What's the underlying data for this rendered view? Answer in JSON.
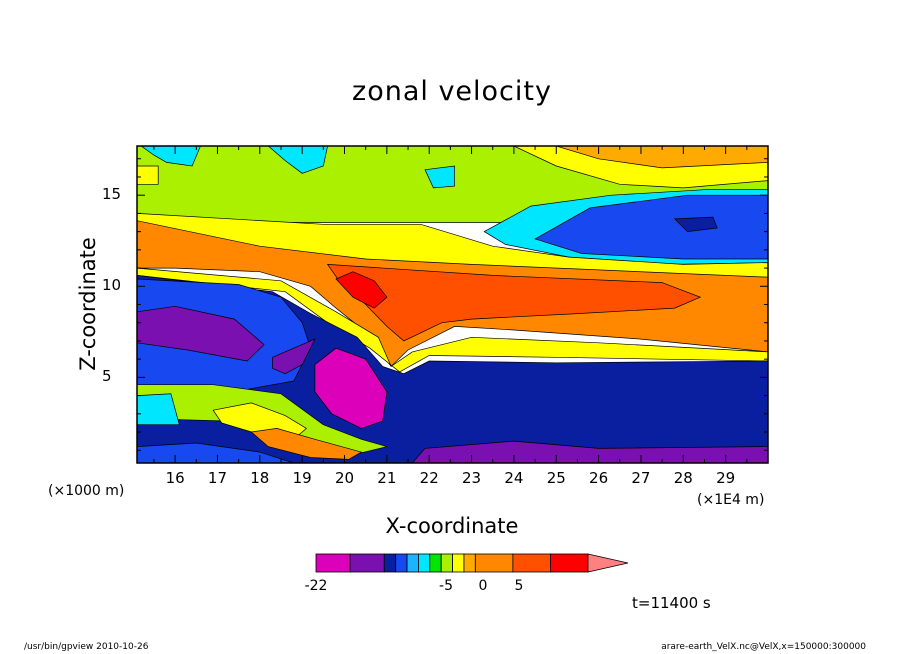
{
  "chart_data": {
    "type": "heatmap",
    "title": "zonal velocity",
    "xlabel": "X-coordinate",
    "ylabel": "Z-coordinate",
    "x_unit": "(×1E4 m)",
    "y_unit": "(×1000 m)",
    "xlim": [
      15.1,
      30.0
    ],
    "ylim": [
      0.3,
      17.7
    ],
    "x_ticks": [
      "16",
      "17",
      "18",
      "19",
      "20",
      "21",
      "22",
      "23",
      "24",
      "25",
      "26",
      "27",
      "28",
      "29"
    ],
    "y_ticks": [
      "5",
      "10",
      "15"
    ],
    "colorbar": {
      "levels": [
        -22,
        -17,
        -12,
        -7,
        -5,
        -3,
        -1,
        0,
        1,
        3,
        5,
        7,
        10,
        15
      ],
      "colors": [
        "#dd00bb",
        "#7a10b0",
        "#0a1ea0",
        "#1848f0",
        "#1ab4ff",
        "#00e6ff",
        "#00e600",
        "#aaf000",
        "#ffff00",
        "#ffaa00",
        "#ff8800",
        "#ff5000",
        "#ff0000",
        "#ff8080"
      ],
      "tick_labels": [
        "-22",
        "-5",
        "0",
        "5"
      ]
    },
    "regions": [
      {
        "name": "upper-green",
        "value": 0,
        "polygon": [
          [
            15.1,
            17.7
          ],
          [
            30,
            17.7
          ],
          [
            30,
            13.5
          ],
          [
            15.1,
            13.5
          ]
        ]
      },
      {
        "name": "upper-right-yellow",
        "value": 2,
        "polygon": [
          [
            24,
            17.7
          ],
          [
            30,
            17.7
          ],
          [
            30,
            15.8
          ],
          [
            28,
            15.4
          ],
          [
            26.5,
            15.6
          ],
          [
            25,
            16.6
          ]
        ]
      },
      {
        "name": "upper-right-orange",
        "value": 4,
        "polygon": [
          [
            25,
            17.7
          ],
          [
            30,
            17.7
          ],
          [
            30,
            16.8
          ],
          [
            27.5,
            16.5
          ],
          [
            26,
            17
          ]
        ]
      },
      {
        "name": "cyan-top-left",
        "value": -3,
        "polygon": [
          [
            15.2,
            17.7
          ],
          [
            16.6,
            17.7
          ],
          [
            16.4,
            16.6
          ],
          [
            15.8,
            16.8
          ],
          [
            15.5,
            17.2
          ]
        ]
      },
      {
        "name": "cyan-top-mid",
        "value": -3,
        "polygon": [
          [
            18.2,
            17.7
          ],
          [
            19.6,
            17.7
          ],
          [
            19.5,
            16.6
          ],
          [
            19,
            16.2
          ],
          [
            18.6,
            16.9
          ]
        ]
      },
      {
        "name": "cyan-top-small",
        "value": -3,
        "polygon": [
          [
            21.9,
            16.4
          ],
          [
            22.6,
            16.6
          ],
          [
            22.6,
            15.5
          ],
          [
            22.1,
            15.4
          ]
        ]
      },
      {
        "name": "yellow-left-blob",
        "value": 2,
        "polygon": [
          [
            15.1,
            16.6
          ],
          [
            15.6,
            16.6
          ],
          [
            15.6,
            15.6
          ],
          [
            15.1,
            15.6
          ]
        ]
      },
      {
        "name": "upper-right-cyan",
        "value": -3,
        "polygon": [
          [
            23.3,
            13.0
          ],
          [
            24.4,
            14.4
          ],
          [
            26.3,
            15.0
          ],
          [
            28.5,
            15.3
          ],
          [
            30,
            15.3
          ],
          [
            30,
            11.3
          ],
          [
            27.8,
            11.2
          ],
          [
            25.3,
            11.6
          ],
          [
            23.8,
            12.3
          ]
        ]
      },
      {
        "name": "upper-right-blue",
        "value": -6,
        "polygon": [
          [
            24.5,
            12.6
          ],
          [
            25.8,
            14.3
          ],
          [
            28.1,
            15.0
          ],
          [
            30,
            15.0
          ],
          [
            30,
            11.5
          ],
          [
            28,
            11.5
          ],
          [
            25.6,
            11.8
          ]
        ]
      },
      {
        "name": "upper-right-navy",
        "value": -9,
        "polygon": [
          [
            27.8,
            13.7
          ],
          [
            28.7,
            13.8
          ],
          [
            28.8,
            13.2
          ],
          [
            28.1,
            13.0
          ]
        ]
      },
      {
        "name": "upper-yellow-band",
        "value": 2,
        "polygon": [
          [
            15.1,
            14.0
          ],
          [
            19.5,
            13.4
          ],
          [
            21.8,
            13.4
          ],
          [
            23.5,
            12.2
          ],
          [
            25.3,
            11.6
          ],
          [
            28,
            11.2
          ],
          [
            30,
            11.3
          ],
          [
            30,
            10.5
          ],
          [
            25,
            10.6
          ],
          [
            21,
            10.8
          ],
          [
            17,
            11.2
          ],
          [
            15.1,
            11.3
          ]
        ]
      },
      {
        "name": "orange-jet",
        "value": 6,
        "polygon": [
          [
            15.1,
            13.6
          ],
          [
            18,
            12.2
          ],
          [
            20.5,
            11.5
          ],
          [
            23,
            11.2
          ],
          [
            26,
            10.9
          ],
          [
            30,
            10.5
          ],
          [
            30,
            6.4
          ],
          [
            27,
            7.1
          ],
          [
            24,
            7.6
          ],
          [
            22.6,
            7.8
          ],
          [
            21.5,
            6.5
          ],
          [
            21.1,
            5.6
          ],
          [
            20.5,
            7.5
          ],
          [
            19.8,
            8.8
          ],
          [
            19.2,
            10.0
          ],
          [
            18,
            10.8
          ],
          [
            16,
            11.0
          ],
          [
            15.1,
            11.0
          ]
        ]
      },
      {
        "name": "dark-orange-core",
        "value": 9,
        "polygon": [
          [
            19.6,
            11.2
          ],
          [
            23.5,
            10.6
          ],
          [
            27.5,
            10.2
          ],
          [
            28.4,
            9.4
          ],
          [
            27.8,
            8.8
          ],
          [
            25.5,
            8.5
          ],
          [
            23,
            8.2
          ],
          [
            22.3,
            8.0
          ],
          [
            21.4,
            7.0
          ],
          [
            21.0,
            7.8
          ],
          [
            20.5,
            9.0
          ],
          [
            19.9,
            10.2
          ]
        ]
      },
      {
        "name": "red-core",
        "value": 12,
        "polygon": [
          [
            19.8,
            10.4
          ],
          [
            20.2,
            10.8
          ],
          [
            20.7,
            10.3
          ],
          [
            21.0,
            9.4
          ],
          [
            20.7,
            8.8
          ],
          [
            20.2,
            9.4
          ]
        ]
      },
      {
        "name": "lower-yellow-band",
        "value": 2,
        "polygon": [
          [
            15.1,
            11.0
          ],
          [
            18.5,
            10.3
          ],
          [
            19.8,
            8.6
          ],
          [
            20.8,
            7.2
          ],
          [
            21.1,
            5.6
          ],
          [
            21.6,
            6.4
          ],
          [
            23,
            7.2
          ],
          [
            26,
            6.9
          ],
          [
            30,
            6.4
          ],
          [
            30,
            5.9
          ],
          [
            25,
            6.1
          ],
          [
            22.0,
            6.2
          ],
          [
            21.3,
            5.3
          ],
          [
            20.6,
            6.6
          ],
          [
            19.6,
            8.0
          ],
          [
            18.6,
            9.7
          ],
          [
            15.1,
            10.6
          ]
        ]
      },
      {
        "name": "lower-domain-navy",
        "value": -9,
        "polygon": [
          [
            15.1,
            10.6
          ],
          [
            18.3,
            9.7
          ],
          [
            19.2,
            8.5
          ],
          [
            20.3,
            7.2
          ],
          [
            20.9,
            5.6
          ],
          [
            21.4,
            5.2
          ],
          [
            22.0,
            5.9
          ],
          [
            25,
            5.8
          ],
          [
            30,
            5.9
          ],
          [
            30,
            0.3
          ],
          [
            15.1,
            0.3
          ]
        ]
      },
      {
        "name": "blue-lower-left",
        "value": -6,
        "polygon": [
          [
            15.1,
            10.4
          ],
          [
            17.5,
            10.1
          ],
          [
            18.5,
            9.4
          ],
          [
            19.0,
            8.0
          ],
          [
            19.2,
            6.6
          ],
          [
            18.8,
            4.8
          ],
          [
            17.6,
            4.3
          ],
          [
            16.0,
            4.2
          ],
          [
            15.1,
            4.0
          ]
        ]
      },
      {
        "name": "purple-left",
        "value": -13,
        "polygon": [
          [
            15.1,
            8.6
          ],
          [
            16.0,
            8.9
          ],
          [
            17.4,
            8.2
          ],
          [
            18.1,
            6.8
          ],
          [
            17.7,
            5.9
          ],
          [
            16.3,
            6.5
          ],
          [
            15.1,
            6.9
          ]
        ]
      },
      {
        "name": "purple-wedge",
        "value": -13,
        "polygon": [
          [
            18.3,
            6.1
          ],
          [
            18.8,
            6.6
          ],
          [
            19.3,
            7.1
          ],
          [
            19.0,
            5.7
          ],
          [
            18.6,
            5.2
          ],
          [
            18.3,
            5.5
          ]
        ]
      },
      {
        "name": "magenta-column",
        "value": -18,
        "polygon": [
          [
            19.3,
            5.7
          ],
          [
            19.8,
            6.6
          ],
          [
            20.5,
            6.0
          ],
          [
            21.0,
            4.2
          ],
          [
            20.9,
            2.6
          ],
          [
            20.4,
            2.2
          ],
          [
            19.7,
            3.0
          ],
          [
            19.3,
            4.2
          ]
        ]
      },
      {
        "name": "green-lower-left",
        "value": 0,
        "polygon": [
          [
            15.1,
            4.6
          ],
          [
            16.9,
            4.6
          ],
          [
            18.5,
            4.1
          ],
          [
            19.5,
            2.4
          ],
          [
            20.4,
            1.6
          ],
          [
            21.0,
            1.2
          ],
          [
            20.3,
            0.8
          ],
          [
            18.8,
            1.4
          ],
          [
            17.3,
            2.6
          ],
          [
            15.8,
            2.7
          ],
          [
            15.1,
            2.6
          ]
        ]
      },
      {
        "name": "cyan-lower-left",
        "value": -3,
        "polygon": [
          [
            15.1,
            4.0
          ],
          [
            15.9,
            4.1
          ],
          [
            16.1,
            2.4
          ],
          [
            15.1,
            2.4
          ]
        ]
      },
      {
        "name": "yellow-lower-left",
        "value": 2,
        "polygon": [
          [
            16.9,
            3.2
          ],
          [
            17.8,
            3.6
          ],
          [
            18.6,
            2.9
          ],
          [
            19.1,
            2.2
          ],
          [
            18.8,
            1.6
          ],
          [
            18.1,
            1.8
          ],
          [
            17.1,
            2.5
          ]
        ]
      },
      {
        "name": "orange-lower-left",
        "value": 5,
        "polygon": [
          [
            17.8,
            2.0
          ],
          [
            18.4,
            2.2
          ],
          [
            19.3,
            1.6
          ],
          [
            20.4,
            0.9
          ],
          [
            20.1,
            0.5
          ],
          [
            19.2,
            0.6
          ],
          [
            18.2,
            1.2
          ]
        ]
      },
      {
        "name": "bottom-blue",
        "value": -6,
        "polygon": [
          [
            15.1,
            1.2
          ],
          [
            16.5,
            1.4
          ],
          [
            18.0,
            0.9
          ],
          [
            18.8,
            0.3
          ],
          [
            15.1,
            0.3
          ]
        ]
      },
      {
        "name": "bottom-purple",
        "value": -13,
        "polygon": [
          [
            21.6,
            0.3
          ],
          [
            21.9,
            1.1
          ],
          [
            24.0,
            1.5
          ],
          [
            26.0,
            1.1
          ],
          [
            30,
            1.2
          ],
          [
            30,
            0.3
          ]
        ]
      }
    ]
  },
  "colorbar_labels": [
    "-22",
    "-5",
    "0",
    "5"
  ],
  "time_label": "t=11400 s",
  "footer_left": "/usr/bin/gpview   2010-10-26",
  "footer_right": "arare-earth_VelX.nc@VelX,x=150000:300000"
}
